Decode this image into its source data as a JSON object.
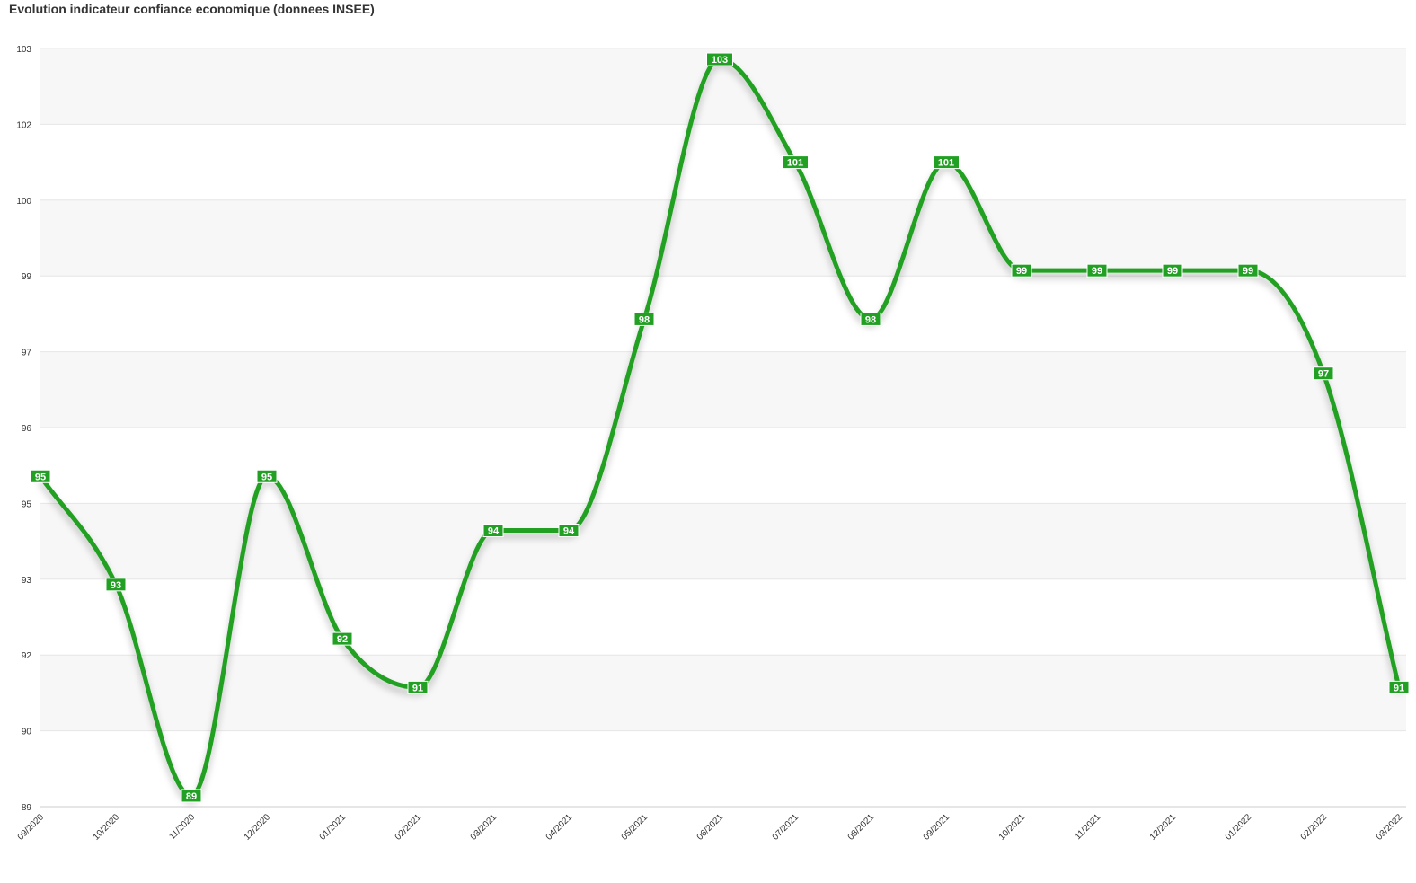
{
  "chart_data": {
    "type": "line",
    "title": "Evolution indicateur confiance economique (donnees INSEE)",
    "categories": [
      "09/2020",
      "10/2020",
      "11/2020",
      "12/2020",
      "01/2021",
      "02/2021",
      "03/2021",
      "04/2021",
      "05/2021",
      "06/2021",
      "07/2021",
      "08/2021",
      "09/2021",
      "10/2021",
      "11/2021",
      "12/2021",
      "01/2022",
      "02/2022",
      "03/2022"
    ],
    "series": [
      {
        "color": "#22a024",
        "values": [
          95.1,
          93.1,
          89.2,
          95.1,
          92.1,
          91.2,
          94.1,
          94.1,
          98.0,
          102.8,
          100.9,
          98.0,
          100.9,
          98.9,
          98.9,
          98.9,
          98.9,
          97.0,
          91.2
        ],
        "value_labels": [
          "95",
          "93",
          "89",
          "95",
          "92",
          "91",
          "94",
          "94",
          "98",
          "103",
          "101",
          "98",
          "101",
          "99",
          "99",
          "99",
          "99",
          "97",
          "91"
        ]
      }
    ],
    "ylim": [
      89,
      103
    ],
    "yticks": [
      89,
      {
        "value": 90.4,
        "label": "90"
      },
      {
        "value": 91.8,
        "label": "92"
      },
      {
        "value": 93.2,
        "label": "93"
      },
      {
        "value": 94.6,
        "label": "95"
      },
      96,
      {
        "value": 97.4,
        "label": "97"
      },
      {
        "value": 98.8,
        "label": "99"
      },
      {
        "value": 100.2,
        "label": "100"
      },
      {
        "value": 101.6,
        "label": "102"
      },
      103
    ],
    "grid": true
  }
}
